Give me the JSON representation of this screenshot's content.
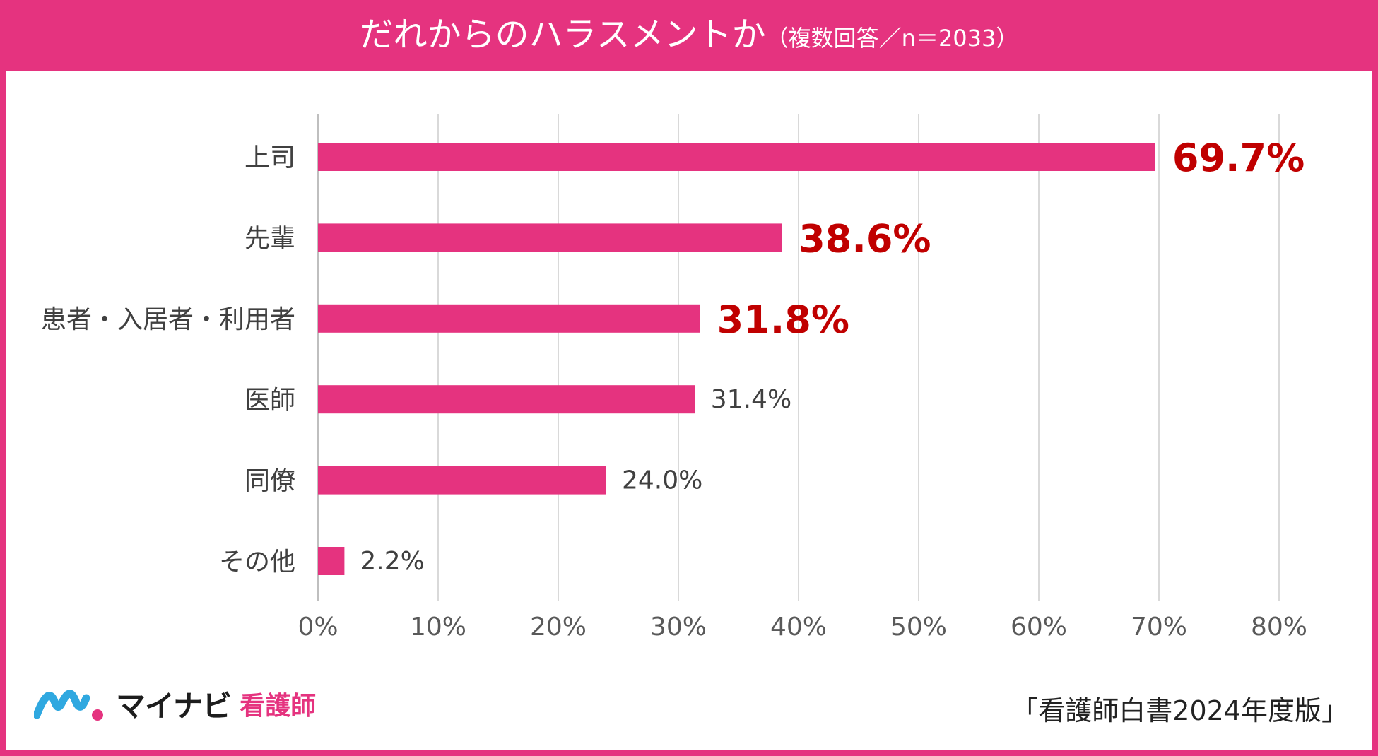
{
  "header": {
    "title_main": "だれからのハラスメントか",
    "title_sub": "（複数回答／n＝2033）"
  },
  "chart_data": {
    "type": "bar",
    "orientation": "horizontal",
    "title": "だれからのハラスメントか（複数回答／n＝2033）",
    "categories": [
      "上司",
      "先輩",
      "患者・入居者・利用者",
      "医師",
      "同僚",
      "その他"
    ],
    "values": [
      69.7,
      38.6,
      31.8,
      31.4,
      24.0,
      2.2
    ],
    "value_labels": [
      "69.7%",
      "38.6%",
      "31.8%",
      "31.4%",
      "24.0%",
      "2.2%"
    ],
    "highlighted": [
      true,
      true,
      true,
      false,
      false,
      false
    ],
    "xlim": [
      0,
      80
    ],
    "xticks": [
      "0%",
      "10%",
      "20%",
      "30%",
      "40%",
      "50%",
      "60%",
      "70%",
      "80%"
    ],
    "xlabel": "",
    "ylabel": "",
    "grid": "vertical",
    "colors": {
      "bar": "#E5337F",
      "highlight_label": "#C00000",
      "label": "#404040",
      "grid": "#D9D9D9"
    }
  },
  "footer": {
    "logo_brand": "マイナビ",
    "logo_sub": "看護師",
    "source": "「看護師白書2024年度版」"
  }
}
